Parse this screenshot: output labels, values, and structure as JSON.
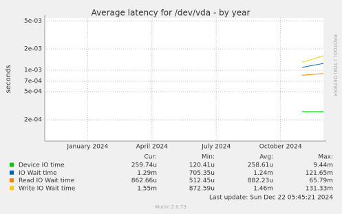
{
  "chart_data": {
    "type": "line",
    "title": "Average latency for /dev/vda - by year",
    "y_label": "seconds",
    "side_label": "RRDTOOL / TOBI OETIKER",
    "log_scale": true,
    "grid": true,
    "xlim": [
      "2023-11",
      "2024-12"
    ],
    "xticks": [
      {
        "value": "2024-01",
        "label": "January 2024"
      },
      {
        "value": "2024-04",
        "label": "April 2024"
      },
      {
        "value": "2024-07",
        "label": "July 2024"
      },
      {
        "value": "2024-10",
        "label": "October 2024"
      }
    ],
    "ylim": [
      0.0001,
      0.0055
    ],
    "yticks": [
      {
        "value": 0.0002,
        "label": "2e-04"
      },
      {
        "value": 0.0005,
        "label": "5e-04"
      },
      {
        "value": 0.0007,
        "label": "7e-04"
      },
      {
        "value": 0.001,
        "label": "1e-03"
      },
      {
        "value": 0.002,
        "label": "2e-03"
      },
      {
        "value": 0.005,
        "label": "5e-03"
      }
    ],
    "x": [
      "2024-11",
      "2024-12"
    ],
    "series": [
      {
        "name": "Device IO time",
        "color": "#00cc00",
        "values": [
          0.00026,
          0.00026
        ]
      },
      {
        "name": "IO Wait time",
        "color": "#0066b3",
        "values": [
          0.0011,
          0.00125
        ]
      },
      {
        "name": "Read IO Wait time",
        "color": "#ff8000",
        "values": [
          0.00085,
          0.0009
        ]
      },
      {
        "name": "Write IO Wait time",
        "color": "#ffcc00",
        "values": [
          0.0013,
          0.0016
        ]
      }
    ],
    "legend_headers": [
      "Cur:",
      "Min:",
      "Avg:",
      "Max:"
    ],
    "legend_rows": [
      [
        "259.74u",
        "120.41u",
        "258.61u",
        "9.44m"
      ],
      [
        "1.29m",
        "705.35u",
        "1.24m",
        "121.65m"
      ],
      [
        "862.66u",
        "512.45u",
        "882.23u",
        "65.79m"
      ],
      [
        "1.55m",
        "872.59u",
        "1.46m",
        "131.33m"
      ]
    ],
    "last_update": "Last update: Sun Dec 22 05:45:21 2024",
    "credit": "Munin 2.0.73"
  }
}
